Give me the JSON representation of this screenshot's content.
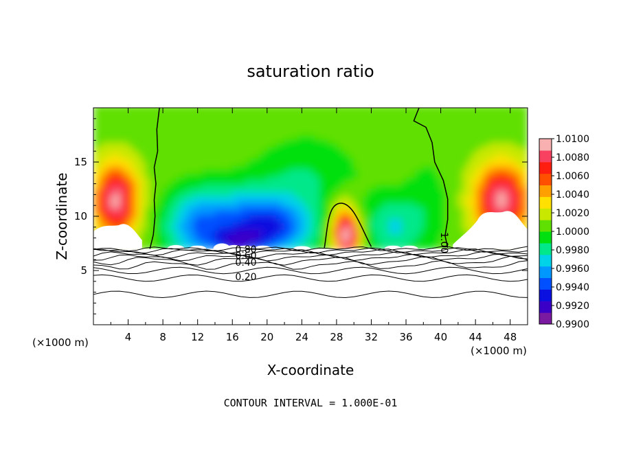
{
  "chart_data": {
    "type": "heatmap",
    "title": "saturation ratio",
    "xlabel": "X-coordinate",
    "ylabel": "Z-coordinate",
    "x_unit_left": "(×1000 m)",
    "x_unit_right": "(×1000 m)",
    "footer": "CONTOUR INTERVAL = 1.000E-01",
    "xlim": [
      0,
      50
    ],
    "ylim": [
      0,
      20
    ],
    "x_ticks": [
      "4",
      "8",
      "12",
      "16",
      "20",
      "24",
      "28",
      "32",
      "36",
      "40",
      "44",
      "48"
    ],
    "y_ticks": [
      "5",
      "10",
      "15"
    ],
    "colorbar": {
      "min": 0.99,
      "max": 1.01,
      "labels": [
        "1.0100",
        "1.0080",
        "1.0060",
        "1.0040",
        "1.0020",
        "1.0000",
        "0.9980",
        "0.9960",
        "0.9940",
        "0.9920",
        "0.9900"
      ],
      "colors": [
        "#7a1aa0",
        "#3a00c8",
        "#0a10e0",
        "#0050ff",
        "#0098ff",
        "#00d2e8",
        "#00e88a",
        "#00e010",
        "#60e000",
        "#c8e800",
        "#ffe000",
        "#ffa000",
        "#ff5000",
        "#ff1e10",
        "#f84060",
        "#f8b0b0"
      ]
    },
    "contour_labels": [
      "0.80",
      "0.60",
      "0.40",
      "0.20",
      "1.00"
    ],
    "contour_values": [
      0.2,
      0.4,
      0.6,
      0.8,
      1.0
    ],
    "surface_z": 7
  }
}
